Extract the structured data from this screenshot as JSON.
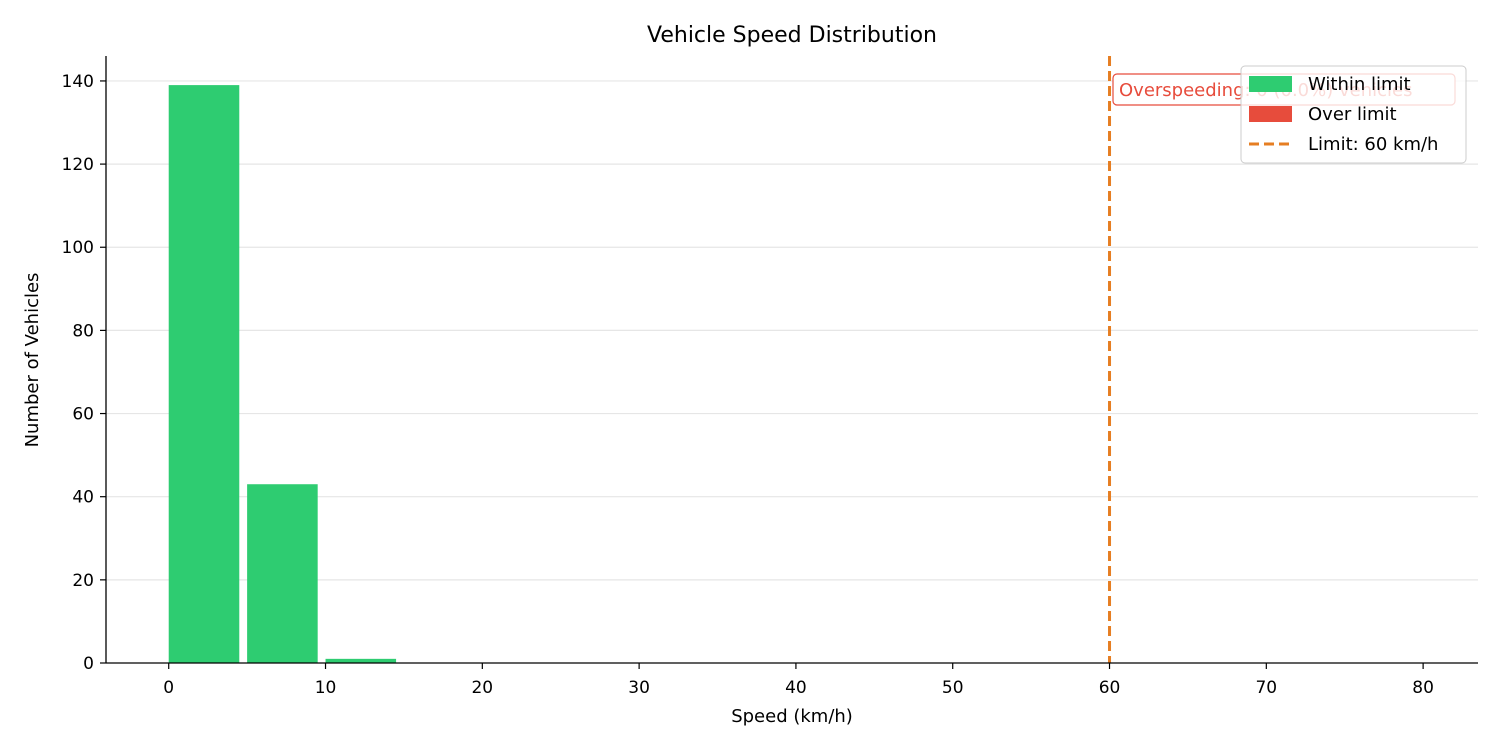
{
  "chart_data": {
    "type": "bar",
    "title": "Vehicle Speed Distribution",
    "xlabel": "Speed (km/h)",
    "ylabel": "Number of Vehicles",
    "xlim": [
      -4,
      83.5
    ],
    "ylim": [
      0,
      146
    ],
    "xticks": [
      0,
      10,
      20,
      30,
      40,
      50,
      60,
      70,
      80
    ],
    "yticks": [
      0,
      20,
      40,
      60,
      80,
      100,
      120,
      140
    ],
    "grid": "y",
    "bin_width": 5,
    "series": [
      {
        "name": "Within limit",
        "color": "#2ecc71",
        "bins": [
          {
            "start": 0,
            "end": 5,
            "value": 139
          },
          {
            "start": 5,
            "end": 10,
            "value": 43
          },
          {
            "start": 10,
            "end": 15,
            "value": 1
          }
        ]
      },
      {
        "name": "Over limit",
        "color": "#e74c3c",
        "bins": []
      }
    ],
    "reference_line": {
      "x": 60,
      "label": "Limit: 60 km/h",
      "color": "#e67e22"
    },
    "annotation": {
      "text": "Overspeeding: 0 (0.0%) vehicles",
      "color": "#e74c3c"
    },
    "legend": {
      "position": "top-right",
      "items": [
        {
          "label": "Within limit",
          "color": "#2ecc71",
          "kind": "patch"
        },
        {
          "label": "Over limit",
          "color": "#e74c3c",
          "kind": "patch"
        },
        {
          "label": "Limit: 60 km/h",
          "color": "#e67e22",
          "kind": "dashed-line"
        }
      ]
    }
  }
}
